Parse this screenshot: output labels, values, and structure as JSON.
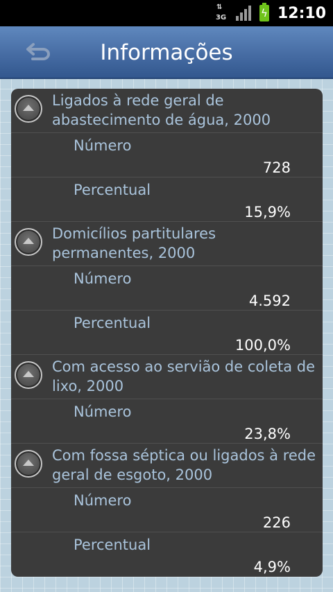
{
  "status_bar": {
    "network_label": "3G",
    "time": "12:10",
    "icons": [
      "network-3g-icon",
      "signal-icon",
      "battery-charging-icon"
    ]
  },
  "title_bar": {
    "title": "Informações",
    "back_icon": "back-arrow-icon"
  },
  "colors": {
    "title_bar": "#4b71a8",
    "panel": "#3b3b3b",
    "label": "#aac4dc",
    "value": "#ffffff",
    "battery": "#6fc31b"
  },
  "sections": [
    {
      "title": "Ligados à rede geral de abastecimento de água, 2000",
      "items": [
        {
          "label": "Número",
          "value": "728"
        },
        {
          "label": "Percentual",
          "value": "15,9%"
        }
      ]
    },
    {
      "title": "Domicílios partitulares permanentes, 2000",
      "items": [
        {
          "label": "Número",
          "value": "4.592"
        },
        {
          "label": "Percentual",
          "value": "100,0%"
        }
      ]
    },
    {
      "title": "Com acesso ao servião de coleta de lixo, 2000",
      "items": [
        {
          "label": "Número",
          "value": "23,8%"
        }
      ]
    },
    {
      "title": "Com fossa séptica ou ligados à rede geral de esgoto, 2000",
      "items": [
        {
          "label": "Número",
          "value": "226"
        },
        {
          "label": "Percentual",
          "value": "4,9%"
        }
      ]
    }
  ]
}
